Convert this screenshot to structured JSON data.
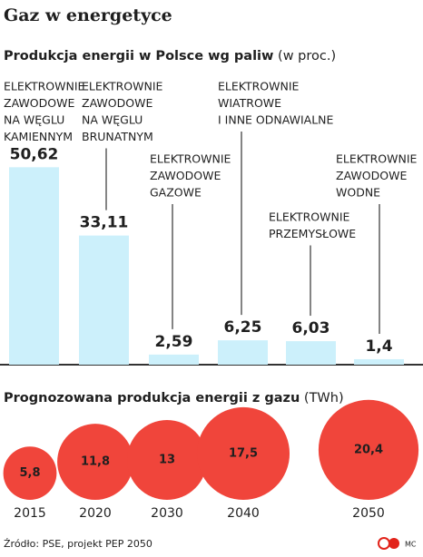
{
  "title": "Gaz w energetyce",
  "chart_data": [
    {
      "type": "bar",
      "title": "Produkcja energii w Polsce wg paliw",
      "subtitle": "(w proc.)",
      "categories": [
        [
          "ELEKTROWNIE",
          "ZAWODOWE",
          "NA WĘGLU",
          "KAMIENNYM"
        ],
        [
          "ELEKTROWNIE",
          "ZAWODOWE",
          "NA WĘGLU",
          "BRUNATNYM"
        ],
        [
          "ELEKTROWNIE",
          "ZAWODOWE",
          "GAZOWE"
        ],
        [
          "ELEKTROWNIE",
          "WIATROWE",
          "I INNE ODNAWIALNE"
        ],
        [
          "ELEKTROWNIE",
          "PRZEMYSŁOWE"
        ],
        [
          "ELEKTROWNIE",
          "ZAWODOWE",
          "WODNE"
        ]
      ],
      "values": [
        50.62,
        33.11,
        2.59,
        6.25,
        6.03,
        1.4
      ],
      "value_labels": [
        "50,62",
        "33,11",
        "2,59",
        "6,25",
        "6,03",
        "1,4"
      ],
      "color": "#ccf0fb"
    },
    {
      "type": "bubble",
      "title": "Prognozowana produkcja energii z gazu",
      "subtitle": "(TWh)",
      "categories": [
        "2015",
        "2020",
        "2030",
        "2040",
        "2050"
      ],
      "values": [
        5.8,
        11.8,
        13,
        17.5,
        20.4
      ],
      "value_labels": [
        "5,8",
        "11,8",
        "13",
        "17,5",
        "20,4"
      ],
      "color": "#f0453b"
    }
  ],
  "source": "Źródło: PSE, projekt PEP 2050",
  "credit": "MC"
}
